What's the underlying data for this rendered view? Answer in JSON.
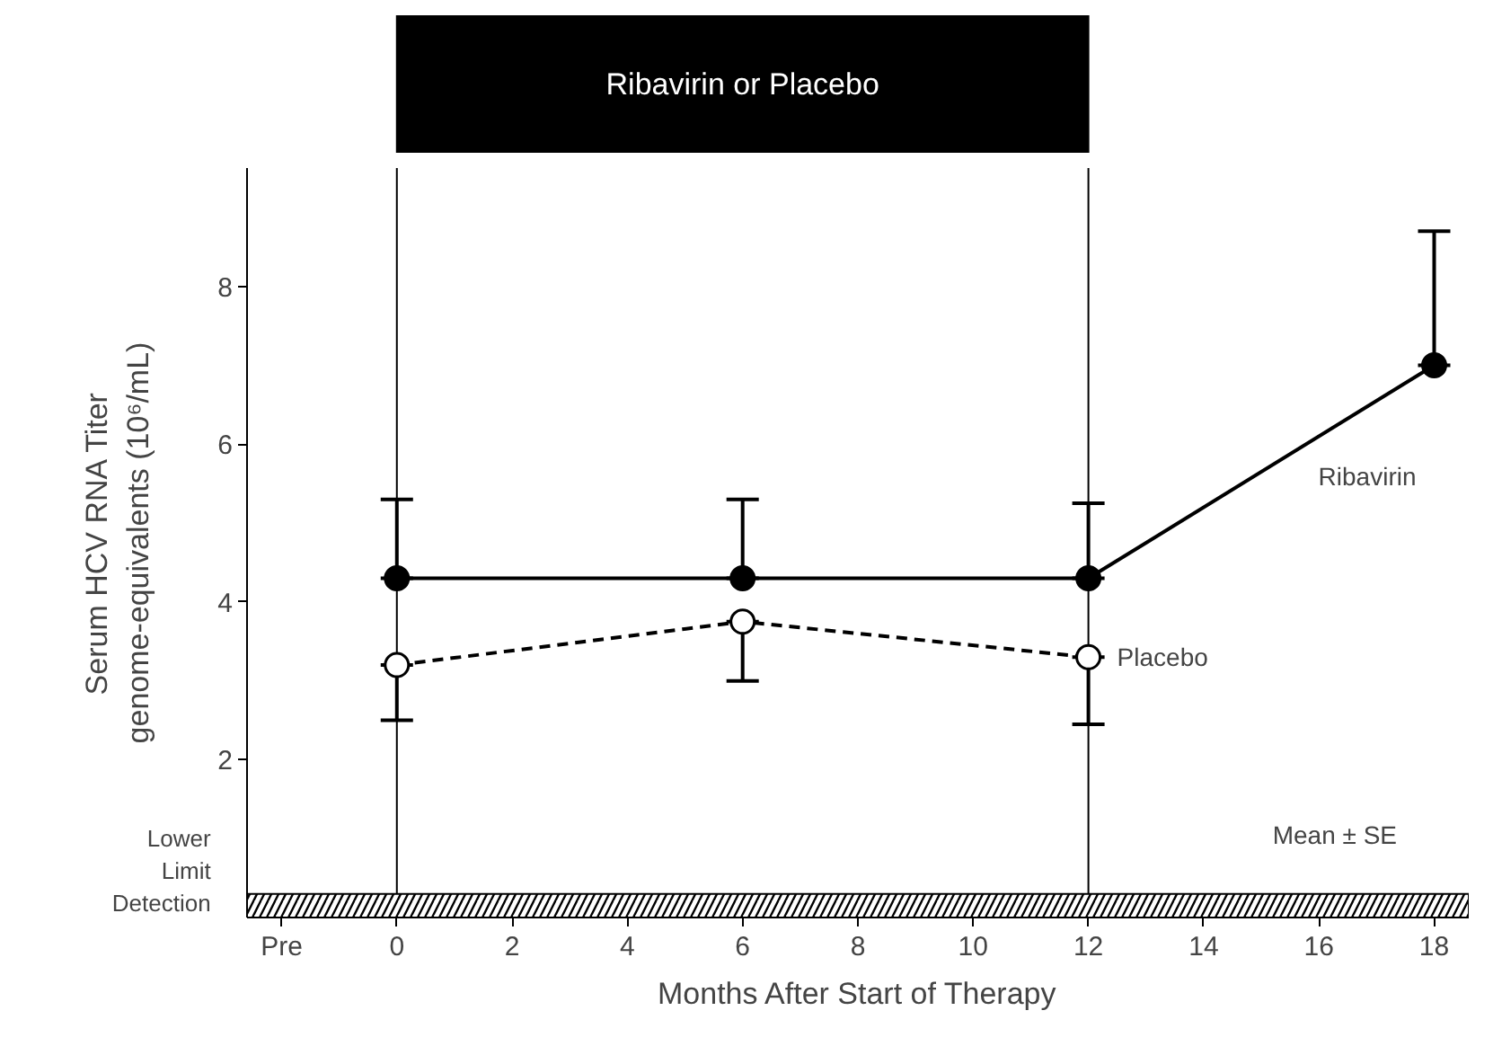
{
  "chart_data": {
    "type": "line",
    "xlabel": "Months After Start of Therapy",
    "ylabel": "Serum HCV RNA Titer\ngenome-equivalents (10⁶/mL)",
    "xlim": [
      -2.6,
      18.6
    ],
    "xticks": [
      {
        "value": -2,
        "label": "Pre"
      },
      0,
      2,
      4,
      6,
      8,
      10,
      12,
      14,
      16,
      18
    ],
    "ylim": [
      0,
      9.5
    ],
    "yticks": [
      2,
      4,
      6,
      8
    ],
    "grid": false,
    "legend": false,
    "marker": "circle",
    "series": [
      {
        "name": "Ribavirin",
        "color": "#000000",
        "line_style": "solid",
        "x": [
          0,
          6,
          12,
          18
        ],
        "values": [
          4.3,
          4.3,
          4.3,
          7.0
        ],
        "errors": [
          [
            4.3,
            5.3
          ],
          [
            4.3,
            5.3
          ],
          [
            4.3,
            5.25
          ],
          [
            7.0,
            8.7
          ]
        ]
      },
      {
        "name": "Placebo",
        "color": "#000000",
        "line_style": "dashed",
        "x": [
          0,
          6,
          12
        ],
        "values": [
          3.2,
          3.75,
          3.3
        ],
        "errors": [
          [
            2.5,
            3.2
          ],
          [
            3.0,
            3.75
          ],
          [
            2.45,
            3.3
          ]
        ]
      }
    ],
    "ref_lines": [
      {
        "axis": "x",
        "value": 0,
        "color": "#000000"
      },
      {
        "axis": "x",
        "value": 12,
        "color": "#000000"
      }
    ],
    "bands": [
      {
        "axis": "y",
        "from": 0,
        "to": 0.3,
        "label": "Lower\nLimit\nDetection",
        "color": "#000000"
      }
    ],
    "annotations": [
      "Ribavirin or Placebo",
      "Mean ± SE"
    ]
  }
}
